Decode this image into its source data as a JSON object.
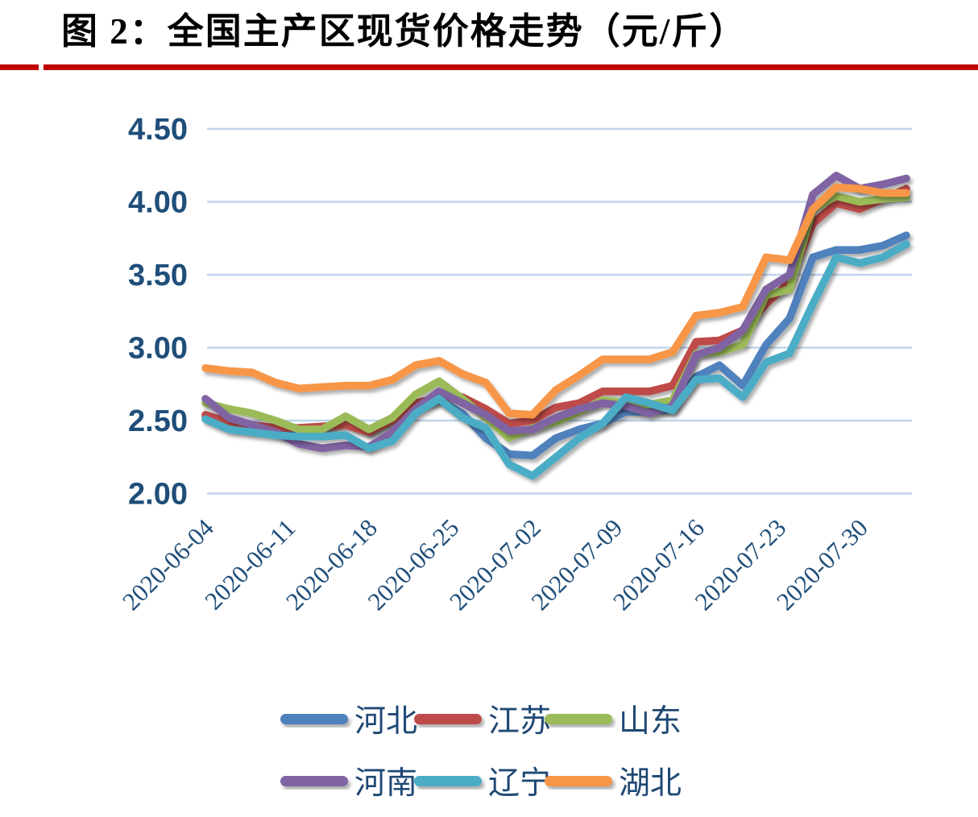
{
  "title": "图 2：全国主产区现货价格走势（元/斤）",
  "colors": {
    "divider": "#C00000",
    "gridline": "#BFD5EA",
    "axis_label": "#1F4E79",
    "legend_label": "#1F4874",
    "title_text": "#000000"
  },
  "chart_data": {
    "type": "line",
    "title": "全国主产区现货价格走势",
    "unit": "元/斤",
    "grid": "horizontal",
    "legend_position": "bottom",
    "ylim": [
      2.0,
      4.5
    ],
    "y_ticks": [
      4.5,
      4.0,
      3.5,
      3.0,
      2.5,
      2.0
    ],
    "x_tick_labels": [
      "2020-06-04",
      "2020-06-11",
      "2020-06-18",
      "2020-06-25",
      "2020-07-02",
      "2020-07-09",
      "2020-07-16",
      "2020-07-23",
      "2020-07-30"
    ],
    "dates": [
      "2020-06-04",
      "2020-06-06",
      "2020-06-08",
      "2020-06-10",
      "2020-06-12",
      "2020-06-14",
      "2020-06-16",
      "2020-06-18",
      "2020-06-20",
      "2020-06-22",
      "2020-06-24",
      "2020-06-26",
      "2020-06-28",
      "2020-06-30",
      "2020-07-02",
      "2020-07-04",
      "2020-07-06",
      "2020-07-08",
      "2020-07-10",
      "2020-07-12",
      "2020-07-14",
      "2020-07-16",
      "2020-07-18",
      "2020-07-20",
      "2020-07-22",
      "2020-07-24",
      "2020-07-26",
      "2020-07-28",
      "2020-07-30",
      "2020-08-01",
      "2020-08-03"
    ],
    "series": [
      {
        "key": "hebei",
        "name": "河北",
        "color": "#4F81BD",
        "values": [
          2.53,
          2.46,
          2.44,
          2.43,
          2.44,
          2.45,
          2.49,
          2.42,
          2.5,
          2.6,
          2.64,
          2.55,
          2.38,
          2.27,
          2.26,
          2.38,
          2.44,
          2.48,
          2.56,
          2.56,
          2.58,
          2.8,
          2.88,
          2.74,
          3.02,
          3.2,
          3.62,
          3.67,
          3.67,
          3.7,
          3.77
        ]
      },
      {
        "key": "jiangsu",
        "name": "江苏",
        "color": "#BE4B48",
        "values": [
          2.54,
          2.49,
          2.47,
          2.45,
          2.45,
          2.46,
          2.47,
          2.42,
          2.5,
          2.62,
          2.66,
          2.66,
          2.58,
          2.48,
          2.5,
          2.59,
          2.62,
          2.7,
          2.7,
          2.7,
          2.74,
          3.04,
          3.05,
          3.12,
          3.3,
          3.45,
          3.85,
          3.99,
          3.95,
          4.02,
          4.09
        ]
      },
      {
        "key": "shandong",
        "name": "山东",
        "color": "#9BBB59",
        "values": [
          2.62,
          2.58,
          2.55,
          2.5,
          2.44,
          2.44,
          2.53,
          2.44,
          2.52,
          2.68,
          2.77,
          2.65,
          2.52,
          2.38,
          2.45,
          2.49,
          2.56,
          2.64,
          2.62,
          2.61,
          2.64,
          2.96,
          2.97,
          3.02,
          3.36,
          3.4,
          3.95,
          4.04,
          4.0,
          4.02,
          4.03
        ]
      },
      {
        "key": "henan",
        "name": "河南",
        "color": "#8064A2",
        "values": [
          2.65,
          2.52,
          2.47,
          2.42,
          2.34,
          2.31,
          2.33,
          2.32,
          2.42,
          2.58,
          2.7,
          2.62,
          2.54,
          2.43,
          2.44,
          2.52,
          2.58,
          2.62,
          2.6,
          2.55,
          2.6,
          2.95,
          3.0,
          3.12,
          3.4,
          3.5,
          4.05,
          4.18,
          4.09,
          4.12,
          4.16
        ]
      },
      {
        "key": "liaoning",
        "name": "辽宁",
        "color": "#4BACC6",
        "values": [
          2.51,
          2.44,
          2.42,
          2.4,
          2.39,
          2.39,
          2.4,
          2.31,
          2.36,
          2.55,
          2.65,
          2.52,
          2.45,
          2.2,
          2.12,
          2.25,
          2.38,
          2.48,
          2.66,
          2.62,
          2.57,
          2.78,
          2.79,
          2.66,
          2.9,
          2.96,
          3.3,
          3.62,
          3.58,
          3.62,
          3.71
        ]
      },
      {
        "key": "hubei",
        "name": "湖北",
        "color": "#F79646",
        "values": [
          2.86,
          2.84,
          2.83,
          2.76,
          2.72,
          2.73,
          2.74,
          2.74,
          2.78,
          2.88,
          2.91,
          2.82,
          2.76,
          2.55,
          2.54,
          2.71,
          2.81,
          2.92,
          2.92,
          2.92,
          2.97,
          3.22,
          3.24,
          3.28,
          3.62,
          3.6,
          3.95,
          4.1,
          4.09,
          4.06,
          4.06
        ]
      }
    ]
  }
}
